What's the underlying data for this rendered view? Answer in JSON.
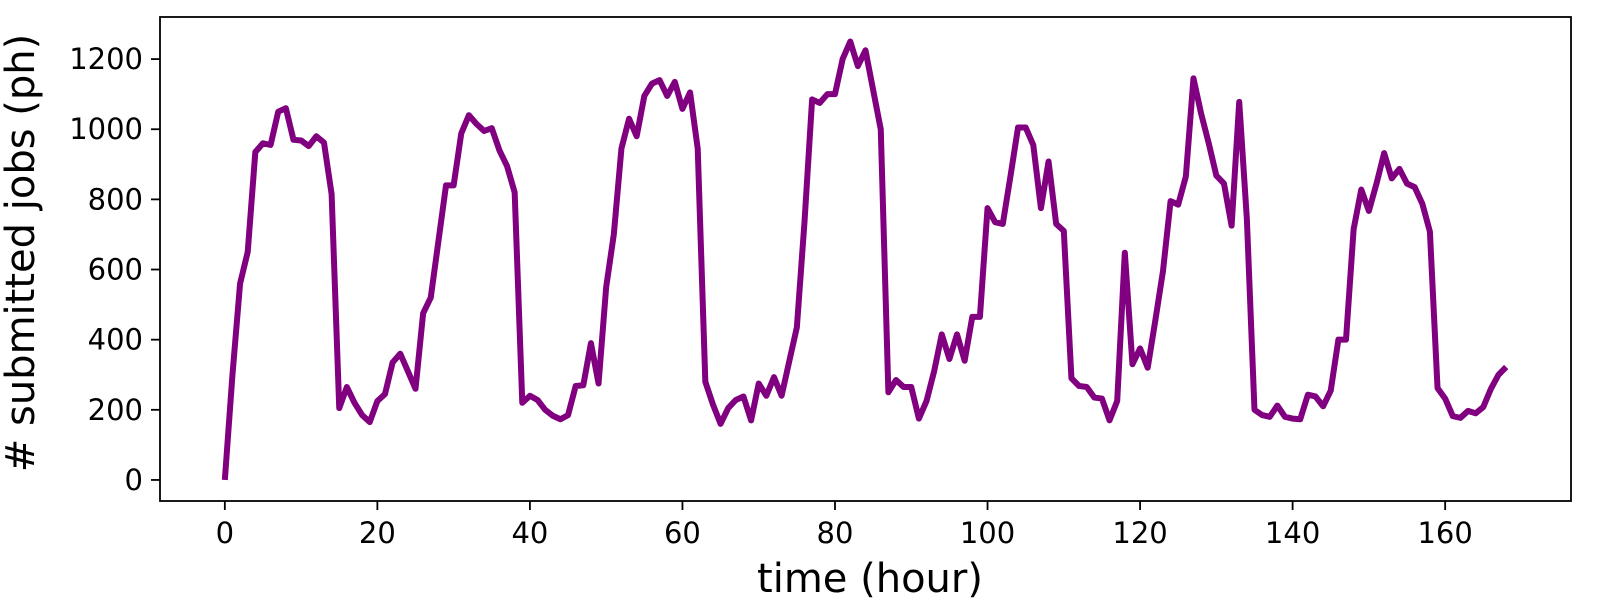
{
  "chart_data": {
    "type": "line",
    "title": "",
    "xlabel": "time (hour)",
    "ylabel": "# submitted jobs (ph)",
    "xlim": [
      -8.5,
      176.5
    ],
    "ylim": [
      -60,
      1320
    ],
    "xticks": [
      0,
      20,
      40,
      60,
      80,
      100,
      120,
      140,
      160
    ],
    "yticks": [
      0,
      200,
      400,
      600,
      800,
      1000,
      1200
    ],
    "grid": false,
    "legend": "none",
    "colors": {
      "line": "#800080"
    },
    "series": [
      {
        "x": [
          0,
          1,
          2,
          3,
          4,
          5,
          6,
          7,
          8,
          9,
          10,
          11,
          12,
          13,
          14,
          15,
          16,
          17,
          18,
          19,
          20,
          21,
          22,
          23,
          24,
          25,
          26,
          27,
          28,
          29,
          30,
          31,
          32,
          33,
          34,
          35,
          36,
          37,
          38,
          39,
          40,
          41,
          42,
          43,
          44,
          45,
          46,
          47,
          48,
          49,
          50,
          51,
          52,
          53,
          54,
          55,
          56,
          57,
          58,
          59,
          60,
          61,
          62,
          63,
          64,
          65,
          66,
          67,
          68,
          69,
          70,
          71,
          72,
          73,
          74,
          75,
          76,
          77,
          78,
          79,
          80,
          81,
          82,
          83,
          84,
          85,
          86,
          87,
          88,
          89,
          90,
          91,
          92,
          93,
          94,
          95,
          96,
          97,
          98,
          99,
          100,
          101,
          102,
          103,
          104,
          105,
          106,
          107,
          108,
          109,
          110,
          111,
          112,
          113,
          114,
          115,
          116,
          117,
          118,
          119,
          120,
          121,
          122,
          123,
          124,
          125,
          126,
          127,
          128,
          129,
          130,
          131,
          132,
          133,
          134,
          135,
          136,
          137,
          138,
          139,
          140,
          141,
          142,
          143,
          144,
          145,
          146,
          147,
          148,
          149,
          150,
          151,
          152,
          153,
          154,
          155,
          156,
          157,
          158,
          159,
          160,
          161,
          162,
          163,
          164,
          165,
          166,
          167,
          168
        ],
        "values": [
          0,
          300,
          560,
          650,
          935,
          960,
          955,
          1050,
          1060,
          970,
          968,
          952,
          980,
          962,
          815,
          205,
          265,
          220,
          185,
          165,
          225,
          245,
          335,
          360,
          310,
          260,
          475,
          520,
          680,
          840,
          840,
          988,
          1040,
          1015,
          995,
          1003,
          940,
          895,
          820,
          220,
          240,
          228,
          200,
          183,
          173,
          185,
          268,
          270,
          390,
          275,
          550,
          700,
          945,
          1030,
          980,
          1095,
          1130,
          1140,
          1095,
          1135,
          1058,
          1105,
          945,
          280,
          215,
          160,
          205,
          228,
          238,
          170,
          275,
          240,
          293,
          240,
          338,
          435,
          735,
          1085,
          1075,
          1100,
          1100,
          1200,
          1250,
          1180,
          1225,
          1112,
          1000,
          250,
          285,
          265,
          265,
          175,
          225,
          310,
          415,
          345,
          415,
          340,
          465,
          465,
          775,
          735,
          730,
          865,
          1005,
          1005,
          955,
          775,
          908,
          730,
          710,
          290,
          268,
          265,
          235,
          232,
          170,
          225,
          648,
          330,
          375,
          320,
          455,
          595,
          795,
          785,
          865,
          1145,
          1045,
          960,
          868,
          845,
          725,
          1078,
          745,
          200,
          185,
          180,
          212,
          180,
          175,
          173,
          243,
          238,
          210,
          255,
          400,
          400,
          715,
          828,
          767,
          845,
          932,
          860,
          887,
          845,
          835,
          788,
          708,
          262,
          232,
          182,
          177,
          197,
          190,
          208,
          260,
          300,
          322
        ]
      }
    ]
  }
}
